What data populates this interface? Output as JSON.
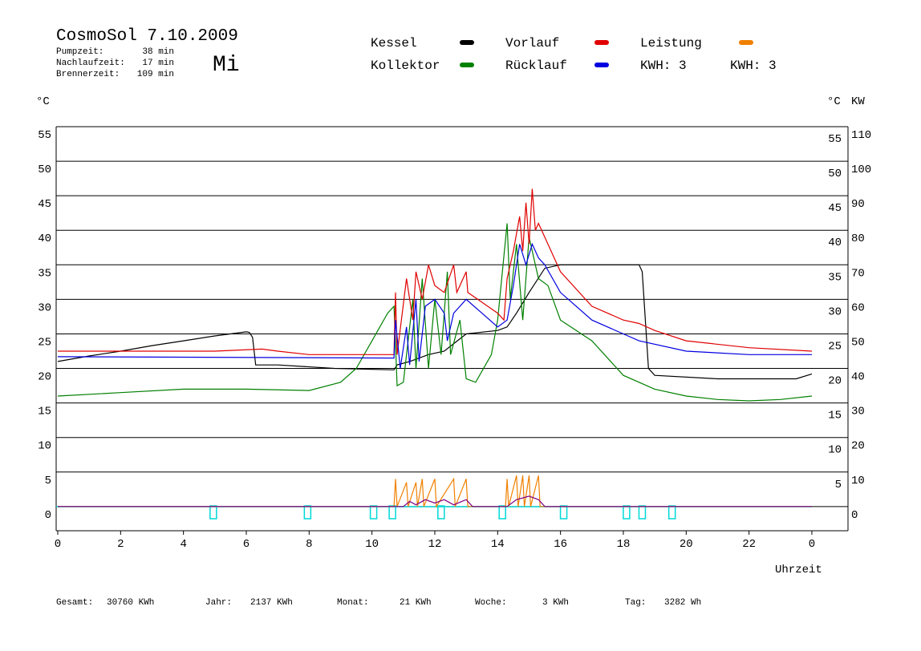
{
  "chart_data": {
    "type": "line",
    "title": "CosmoSol 7.10.2009",
    "day": "Mi",
    "stats": [
      {
        "label": "Pumpzeit:",
        "value": "38 min"
      },
      {
        "label": "Nachlaufzeit:",
        "value": "17 min"
      },
      {
        "label": "Brennerzeit:",
        "value": "109 min"
      }
    ],
    "kwh_labels": [
      {
        "text": "KWH: 3",
        "color": "#e08a00"
      },
      {
        "text": "KWH: 3",
        "color": "#800080"
      }
    ],
    "y_unit": "°C",
    "y2_units": [
      {
        "text": "°C",
        "color": "#000000"
      },
      {
        "text": "KW",
        "color": "#e08a00"
      }
    ],
    "x_label": "Uhrzeit",
    "xlim": [
      0,
      25.15
    ],
    "xticks": [
      0,
      2,
      4,
      6,
      8,
      10,
      12,
      14,
      16,
      18,
      20,
      22,
      {
        "value": 24,
        "label": "0"
      }
    ],
    "ylim": [
      -3.5,
      55
    ],
    "yticks": [
      0,
      5,
      10,
      15,
      20,
      25,
      30,
      35,
      40,
      45,
      50,
      55
    ],
    "y_right_ticks": [
      5,
      10,
      15,
      20,
      25,
      30,
      35,
      40,
      45,
      50,
      55
    ],
    "y2lim": [
      -7,
      110
    ],
    "y2ticks": [
      0,
      10,
      20,
      30,
      40,
      50,
      60,
      70,
      80,
      90,
      100,
      110
    ],
    "y2_color": "#e08a00",
    "grid": true,
    "series": [
      {
        "name": "Kessel",
        "color": "#000000",
        "x": [
          0,
          1,
          2,
          3,
          4,
          5,
          6,
          6.1,
          6.2,
          6.3,
          7,
          8.8,
          10.7,
          10.8,
          11.2,
          11.8,
          12.3,
          13,
          14,
          14.3,
          14.6,
          15,
          15.5,
          16,
          18.5,
          18.6,
          18.8,
          19,
          21,
          23.5,
          24
        ],
        "values": [
          21,
          21.8,
          22.5,
          23.3,
          24,
          24.7,
          25.3,
          25.2,
          24.5,
          20.5,
          20.5,
          20,
          19.8,
          20.5,
          21,
          22,
          22.5,
          25,
          25.5,
          26,
          28,
          31,
          34.5,
          35,
          35,
          34,
          20,
          19,
          18.5,
          18.5,
          19.2
        ]
      },
      {
        "name": "Kollektor",
        "color": "#008000",
        "x": [
          0,
          2,
          4,
          6,
          8,
          9,
          9.5,
          10,
          10.5,
          10.7,
          10.8,
          11,
          11.3,
          11.4,
          11.6,
          11.8,
          12,
          12.2,
          12.4,
          12.5,
          12.8,
          13,
          13.3,
          13.8,
          14,
          14.3,
          14.4,
          14.6,
          14.8,
          15,
          15.3,
          15.6,
          16,
          17,
          18,
          19,
          20,
          21,
          22,
          23,
          24
        ],
        "values": [
          16,
          16.5,
          17,
          17,
          16.8,
          18,
          20,
          24,
          28,
          29,
          17.5,
          18,
          30,
          20,
          33,
          20,
          30,
          22,
          34,
          22,
          27,
          18.5,
          18,
          22,
          27,
          41,
          30,
          38,
          27,
          39,
          33,
          32,
          27,
          24,
          19,
          17,
          16,
          15.5,
          15.3,
          15.5,
          16
        ]
      },
      {
        "name": "Vorlauf",
        "color": "#e00000",
        "x": [
          0,
          5,
          6.5,
          7,
          8,
          10.7,
          10.75,
          10.8,
          11.1,
          11.3,
          11.4,
          11.6,
          11.8,
          12,
          12.3,
          12.6,
          12.7,
          13,
          13.05,
          14,
          14.2,
          14.3,
          14.5,
          14.7,
          14.8,
          14.9,
          15,
          15.1,
          15.2,
          15.3,
          15.6,
          16,
          17,
          18,
          18.5,
          19,
          20,
          22,
          24
        ],
        "values": [
          22.5,
          22.5,
          22.8,
          22.5,
          22,
          22,
          31,
          22,
          33,
          27,
          34,
          30,
          35,
          32,
          31,
          35,
          31,
          34,
          31,
          28,
          27,
          33,
          37,
          42,
          37,
          44,
          38,
          46,
          40,
          41,
          38,
          34,
          29,
          27,
          26.5,
          25.5,
          24,
          23,
          22.5
        ]
      },
      {
        "name": "Rücklauf",
        "color": "#0000e0",
        "x": [
          0,
          10.7,
          10.75,
          10.9,
          11.1,
          11.2,
          11.4,
          11.5,
          11.7,
          12,
          12.3,
          12.4,
          12.6,
          13,
          13.5,
          14,
          14.3,
          14.5,
          14.7,
          14.9,
          15.1,
          15.3,
          15.5,
          16,
          17,
          18,
          18.5,
          20,
          22,
          24
        ],
        "values": [
          21.7,
          21.5,
          27,
          20,
          26,
          20.5,
          30,
          21,
          29,
          30,
          28,
          24,
          28,
          30,
          28,
          26,
          27,
          32,
          38,
          35,
          38,
          36,
          35,
          31,
          27,
          25,
          24,
          22.5,
          22,
          22
        ]
      },
      {
        "name": "Leistung",
        "color": "#f08000",
        "axis": "y2",
        "x": [
          0,
          10.7,
          10.75,
          10.8,
          11.1,
          11.15,
          11.4,
          11.45,
          11.6,
          11.65,
          12,
          12.05,
          12.6,
          12.65,
          13,
          13.05,
          14.25,
          14.3,
          14.35,
          14.6,
          14.65,
          14.8,
          14.85,
          15,
          15.05,
          15.3,
          15.35,
          24
        ],
        "values": [
          0,
          0,
          8,
          0,
          7,
          0,
          7,
          0,
          8,
          0,
          8,
          0,
          8,
          0,
          8,
          0,
          0,
          8,
          0,
          9,
          0,
          9,
          0,
          9,
          0,
          9,
          0,
          0
        ]
      },
      {
        "color": "#800080",
        "axis": "y2",
        "x": [
          0,
          11,
          11.2,
          11.4,
          11.7,
          12,
          12.3,
          12.6,
          13,
          13.2,
          14.3,
          14.6,
          15,
          15.3,
          15.5,
          24
        ],
        "values": [
          0,
          0,
          1.5,
          0.5,
          2,
          1,
          2,
          0.5,
          2,
          0,
          0,
          2,
          3,
          2,
          0,
          0
        ]
      }
    ],
    "pump_color": "#00d8d8",
    "pump_events": [
      4.95,
      7.95,
      10.05,
      10.65,
      12.2,
      14.15,
      16.1,
      18.1,
      18.6,
      19.55
    ],
    "totals": [
      {
        "label": "Gesamt:",
        "value": "30760 KWh"
      },
      {
        "label": "Jahr:",
        "value": "2137 KWh"
      },
      {
        "label": "Monat:",
        "value": "21 KWh"
      },
      {
        "label": "Woche:",
        "value": "3 KWh"
      },
      {
        "label": "Tag:",
        "value": "3282 Wh"
      }
    ]
  }
}
